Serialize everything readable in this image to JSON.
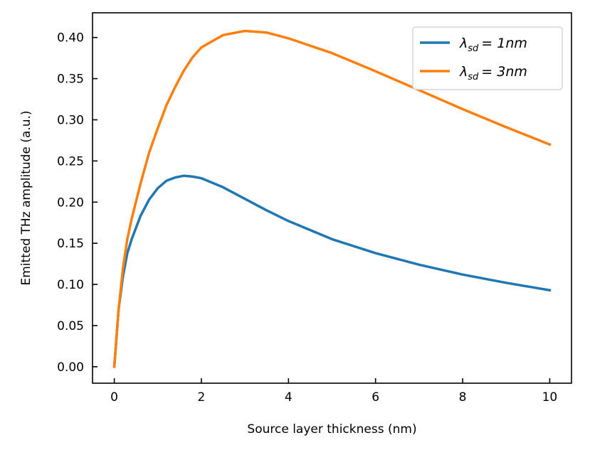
{
  "chart_data": {
    "type": "line",
    "title": "",
    "xlabel": "Source layer thickness (nm)",
    "ylabel": "Emitted THz amplitude (a.u.)",
    "xlim": [
      -0.5,
      10.5
    ],
    "ylim": [
      -0.02,
      0.43
    ],
    "x_ticks": [
      0,
      2,
      4,
      6,
      8,
      10
    ],
    "x_tick_labels": [
      "0",
      "2",
      "4",
      "6",
      "8",
      "10"
    ],
    "y_ticks": [
      0.0,
      0.05,
      0.1,
      0.15,
      0.2,
      0.25,
      0.3,
      0.35,
      0.4
    ],
    "y_tick_labels": [
      "0.00",
      "0.05",
      "0.10",
      "0.15",
      "0.20",
      "0.25",
      "0.30",
      "0.35",
      "0.40"
    ],
    "grid": false,
    "legend_position": "top-right",
    "series": [
      {
        "name": "λ_sd = 1nm",
        "legend_symbol": "λ",
        "legend_sub": "sd",
        "legend_value": "= 1nm",
        "color": "#1f77b4",
        "x": [
          0,
          0.1,
          0.2,
          0.3,
          0.4,
          0.6,
          0.8,
          1.0,
          1.2,
          1.4,
          1.6,
          1.8,
          2.0,
          2.5,
          3.0,
          3.5,
          4.0,
          5.0,
          6.0,
          7.0,
          8.0,
          9.0,
          10.0
        ],
        "values": [
          0.0,
          0.07,
          0.11,
          0.138,
          0.155,
          0.183,
          0.203,
          0.217,
          0.226,
          0.23,
          0.232,
          0.231,
          0.229,
          0.218,
          0.204,
          0.19,
          0.177,
          0.155,
          0.138,
          0.124,
          0.112,
          0.102,
          0.093
        ]
      },
      {
        "name": "λ_sd = 3nm",
        "legend_symbol": "λ",
        "legend_sub": "sd",
        "legend_value": "= 3nm",
        "color": "#ff7f0e",
        "x": [
          0,
          0.1,
          0.2,
          0.3,
          0.4,
          0.6,
          0.8,
          1.0,
          1.2,
          1.4,
          1.6,
          1.8,
          2.0,
          2.5,
          3.0,
          3.5,
          4.0,
          5.0,
          6.0,
          7.0,
          8.0,
          9.0,
          10.0
        ],
        "values": [
          0.0,
          0.07,
          0.12,
          0.155,
          0.18,
          0.222,
          0.26,
          0.29,
          0.318,
          0.34,
          0.36,
          0.376,
          0.388,
          0.403,
          0.408,
          0.406,
          0.399,
          0.381,
          0.359,
          0.336,
          0.313,
          0.291,
          0.27
        ]
      }
    ]
  }
}
